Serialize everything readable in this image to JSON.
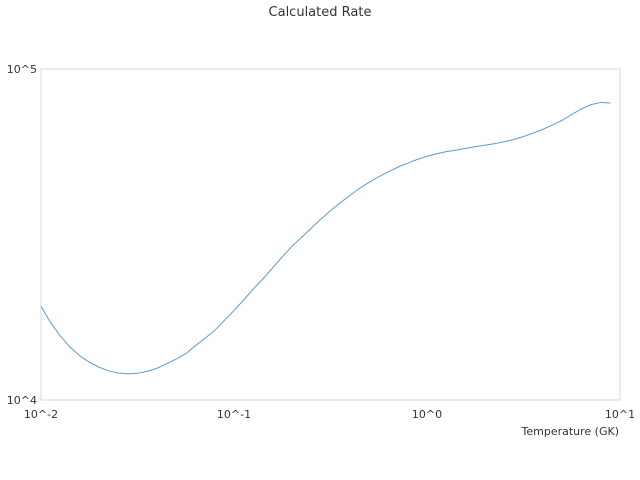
{
  "chart_data": {
    "type": "line",
    "title": "Calculated Rate",
    "xlabel": "Temperature (GK)",
    "ylabel": "",
    "x_scale": "log",
    "y_scale": "log",
    "xlim": [
      0.01,
      10
    ],
    "ylim": [
      10000,
      100000
    ],
    "grid": false,
    "legend": "none",
    "x_ticks": [
      {
        "value": 0.01,
        "label": "10^-2"
      },
      {
        "value": 0.1,
        "label": "10^-1"
      },
      {
        "value": 1,
        "label": "10^0"
      },
      {
        "value": 10,
        "label": "10^1"
      }
    ],
    "y_ticks": [
      {
        "value": 10000,
        "label": "10^4"
      },
      {
        "value": 100000,
        "label": "10^5"
      }
    ],
    "colors": {
      "series": "#5b9bd5",
      "plot_border": "#d9d9d9"
    },
    "series": [
      {
        "x": [
          0.01,
          0.0112,
          0.0126,
          0.0141,
          0.0158,
          0.0178,
          0.02,
          0.0224,
          0.0251,
          0.0282,
          0.0316,
          0.0355,
          0.0398,
          0.0447,
          0.0501,
          0.0562,
          0.0631,
          0.0708,
          0.0794,
          0.0891,
          0.1,
          0.1122,
          0.1259,
          0.1413,
          0.1585,
          0.1778,
          0.1995,
          0.2239,
          0.2512,
          0.2818,
          0.3162,
          0.3548,
          0.3981,
          0.4467,
          0.5012,
          0.5623,
          0.631,
          0.7079,
          0.7943,
          0.8913,
          1.0,
          1.122,
          1.259,
          1.413,
          1.585,
          1.778,
          1.995,
          2.239,
          2.512,
          2.818,
          3.162,
          3.548,
          3.981,
          4.467,
          5.012,
          5.623,
          6.31,
          7.079,
          7.943,
          8.913
        ],
        "y": [
          19200,
          17150,
          15600,
          14480,
          13630,
          13000,
          12560,
          12250,
          12070,
          11990,
          12040,
          12200,
          12460,
          12870,
          13280,
          13800,
          14590,
          15380,
          16210,
          17390,
          18630,
          20050,
          21640,
          23240,
          25090,
          27080,
          29100,
          31000,
          33030,
          35190,
          37290,
          39420,
          41450,
          43580,
          45450,
          47290,
          48900,
          50570,
          51930,
          53320,
          54440,
          55460,
          56300,
          56870,
          57590,
          58280,
          58850,
          59480,
          60290,
          61250,
          62510,
          64000,
          65700,
          67770,
          69950,
          72880,
          75720,
          78030,
          79240,
          78940
        ]
      }
    ]
  }
}
